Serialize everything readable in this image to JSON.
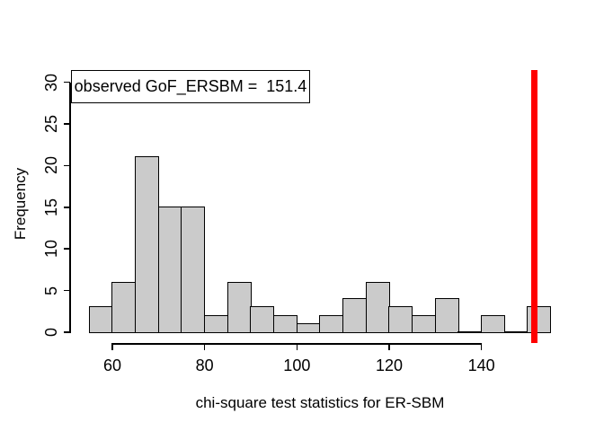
{
  "figure": {
    "background": "#FFFFFF"
  },
  "chart_data": {
    "type": "bar",
    "subtype": "histogram",
    "title": "",
    "xlabel": "chi-square test statistics for ER-SBM",
    "ylabel": "Frequency",
    "bin_start": 55,
    "bin_width": 5,
    "bin_edges": [
      55,
      60,
      65,
      70,
      75,
      80,
      85,
      90,
      95,
      100,
      105,
      110,
      115,
      120,
      125,
      130,
      135,
      140,
      145,
      150,
      155
    ],
    "counts": [
      3,
      6,
      21,
      15,
      15,
      2,
      6,
      3,
      2,
      1,
      2,
      4,
      6,
      3,
      2,
      4,
      0,
      2,
      0,
      3
    ],
    "total_count": 100,
    "x_ticks": [
      60,
      80,
      100,
      120,
      140
    ],
    "y_ticks": [
      0,
      5,
      10,
      15,
      20,
      25,
      30
    ],
    "xlim": [
      55,
      155
    ],
    "ylim": [
      0,
      30
    ],
    "grid": false,
    "legend": {
      "text": "observed GoF_ERSBM =  151.4",
      "position": "top-left"
    },
    "observed_line": {
      "x": 151.4,
      "color": "#FF0000"
    },
    "colors": {
      "bar_fill": "#CBCBCB",
      "bar_border": "#000000",
      "axis": "#000000",
      "text": "#000000"
    }
  }
}
